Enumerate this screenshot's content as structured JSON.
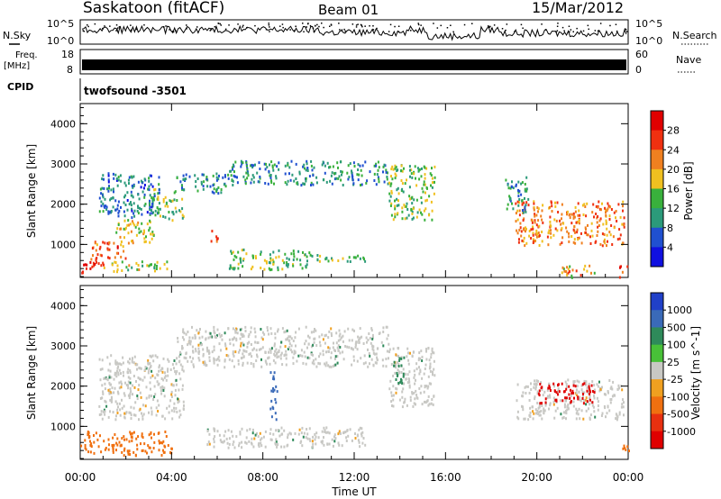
{
  "header": {
    "station": "Saskatoon (fitACF)",
    "beam": "Beam 01",
    "date": "15/Mar/2012"
  },
  "top_panels": {
    "nsky_label": "N.Sky",
    "nsky_ticks": [
      "10^5",
      "10^0"
    ],
    "nsearch_label": "N.Search",
    "nsearch_ticks": [
      "10^5",
      "10^0"
    ],
    "freq_label": "Freq.",
    "freq_unit": "[MHz]",
    "freq_ticks": [
      "18",
      "8"
    ],
    "nave_label": "Nave",
    "nave_ticks": [
      "60",
      "0"
    ],
    "cpid_label": "CPID",
    "cpid_value": "twofsound -3501"
  },
  "power_colors": [
    "#1010e0",
    "#2050d0",
    "#2b9a7a",
    "#39b03c",
    "#f0c020",
    "#f08020",
    "#f03010",
    "#e00000"
  ],
  "velocity_colors": [
    "#2040c8",
    "#3a6ab8",
    "#2e8a5a",
    "#48c038",
    "#c8c8c4",
    "#f0a020",
    "#f07010",
    "#e83010",
    "#e00000"
  ],
  "chart_data": [
    {
      "type": "heatmap",
      "name_key": "power",
      "ylabel": "Slant Range [km]",
      "xlabel": "",
      "xlim": [
        0,
        24
      ],
      "ylim": [
        180,
        4500
      ],
      "y_ticks": [
        "1000",
        "2000",
        "3000",
        "4000"
      ],
      "x_ticks": [],
      "colorbar": {
        "label": "Power [dB]",
        "tick_labels": [
          "4",
          "8",
          "12",
          "16",
          "20",
          "24",
          "28"
        ]
      },
      "regions": [
        {
          "x": [
            0.0,
            1.0
          ],
          "y": [
            300,
            700
          ],
          "value": 28
        },
        {
          "x": [
            0.5,
            2.0
          ],
          "y": [
            650,
            1100
          ],
          "value": 24
        },
        {
          "x": [
            1.5,
            3.2
          ],
          "y": [
            1050,
            1650
          ],
          "value": 18
        },
        {
          "x": [
            3.0,
            4.5
          ],
          "y": [
            1600,
            2400
          ],
          "value": 14
        },
        {
          "x": [
            4.2,
            6.5
          ],
          "y": [
            2300,
            2800
          ],
          "value": 10
        },
        {
          "x": [
            6.5,
            13.5
          ],
          "y": [
            2500,
            3100
          ],
          "value": 10
        },
        {
          "x": [
            13.5,
            15.5
          ],
          "y": [
            1600,
            3000
          ],
          "value": 14
        },
        {
          "x": [
            1.0,
            3.8
          ],
          "y": [
            350,
            600
          ],
          "value": 16
        },
        {
          "x": [
            5.7,
            6.0
          ],
          "y": [
            1100,
            1500
          ],
          "value": 28
        },
        {
          "x": [
            6.5,
            10.0
          ],
          "y": [
            400,
            900
          ],
          "value": 14
        },
        {
          "x": [
            10.0,
            12.5
          ],
          "y": [
            600,
            800
          ],
          "value": 14
        },
        {
          "x": [
            0.8,
            3.5
          ],
          "y": [
            1700,
            2800
          ],
          "value": 8
        },
        {
          "x": [
            19.0,
            23.8
          ],
          "y": [
            1000,
            2100
          ],
          "value": 22
        },
        {
          "x": [
            18.6,
            19.6
          ],
          "y": [
            1800,
            2700
          ],
          "value": 10
        },
        {
          "x": [
            23.6,
            24.0
          ],
          "y": [
            200,
            500
          ],
          "value": 28
        },
        {
          "x": [
            21.0,
            22.5
          ],
          "y": [
            200,
            500
          ],
          "value": 20
        }
      ]
    },
    {
      "type": "heatmap",
      "name_key": "velocity",
      "ylabel": "Slant Range [km]",
      "xlabel": "Time UT",
      "xlim": [
        0,
        24
      ],
      "ylim": [
        180,
        4500
      ],
      "y_ticks": [
        "1000",
        "2000",
        "3000",
        "4000"
      ],
      "x_ticks": [
        "00:00",
        "04:00",
        "08:00",
        "12:00",
        "16:00",
        "20:00",
        "00:00"
      ],
      "colorbar": {
        "label": "Velocity [m s^-1]",
        "tick_labels": [
          "1000",
          "500",
          "100",
          "25",
          "-25",
          "-100",
          "-500",
          "-1000"
        ]
      },
      "regions": [
        {
          "x": [
            0.0,
            4.0
          ],
          "y": [
            300,
            900
          ],
          "value": -200
        },
        {
          "x": [
            0.8,
            4.5
          ],
          "y": [
            1200,
            2800
          ],
          "value": 0
        },
        {
          "x": [
            4.2,
            13.5
          ],
          "y": [
            2500,
            3500
          ],
          "value": 0
        },
        {
          "x": [
            13.5,
            15.5
          ],
          "y": [
            1500,
            3000
          ],
          "value": 0
        },
        {
          "x": [
            5.5,
            12.5
          ],
          "y": [
            500,
            1000
          ],
          "value": 0
        },
        {
          "x": [
            8.3,
            8.6
          ],
          "y": [
            1100,
            2400
          ],
          "value": 300
        },
        {
          "x": [
            13.7,
            14.2
          ],
          "y": [
            2100,
            2800
          ],
          "value": 60
        },
        {
          "x": [
            19.0,
            23.8
          ],
          "y": [
            1200,
            2200
          ],
          "value": 0
        },
        {
          "x": [
            20.0,
            22.5
          ],
          "y": [
            1600,
            2100
          ],
          "value": -800
        },
        {
          "x": [
            23.6,
            24.0
          ],
          "y": [
            300,
            600
          ],
          "value": -200
        }
      ]
    }
  ]
}
